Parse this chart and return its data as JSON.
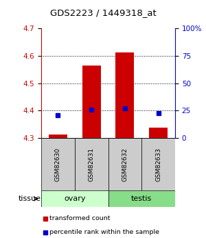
{
  "title": "GDS2223 / 1449318_at",
  "samples": [
    "GSM82630",
    "GSM82631",
    "GSM82632",
    "GSM82633"
  ],
  "red_values": [
    4.313,
    4.565,
    4.613,
    4.338
  ],
  "blue_values": [
    4.383,
    4.403,
    4.408,
    4.39
  ],
  "ylim_left": [
    4.3,
    4.7
  ],
  "ylim_right": [
    0,
    100
  ],
  "yticks_left": [
    4.3,
    4.4,
    4.5,
    4.6,
    4.7
  ],
  "yticks_right": [
    0,
    25,
    50,
    75,
    100
  ],
  "ytick_labels_right": [
    "0",
    "25",
    "50",
    "75",
    "100%"
  ],
  "bar_color": "#cc0000",
  "dot_color": "#0000cc",
  "bar_width": 0.55,
  "left_axis_color": "#cc0000",
  "right_axis_color": "#0000cc",
  "legend_red": "transformed count",
  "legend_blue": "percentile rank within the sample",
  "background_color": "#ffffff",
  "sample_box_color": "#cccccc",
  "ovary_color": "#ccffcc",
  "testis_color": "#88dd88"
}
